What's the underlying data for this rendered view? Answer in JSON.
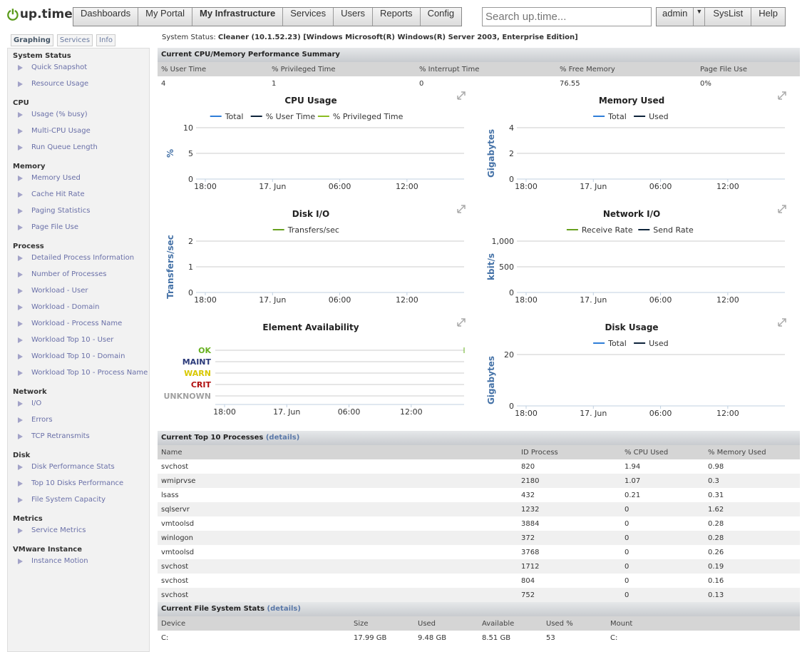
{
  "header": {
    "logo": "up.time",
    "nav": [
      "Dashboards",
      "My Portal",
      "My Infrastructure",
      "Services",
      "Users",
      "Reports",
      "Config"
    ],
    "active_nav": "My Infrastructure",
    "search_placeholder": "Search up.time...",
    "user": "admin",
    "syslist": "SysList",
    "help": "Help"
  },
  "sidebar": {
    "tabs": [
      "Graphing",
      "Services",
      "Info"
    ],
    "groups": [
      {
        "title": "System Status",
        "items": [
          "Quick Snapshot",
          "Resource Usage"
        ]
      },
      {
        "title": "CPU",
        "items": [
          "Usage (% busy)",
          "Multi-CPU Usage",
          "Run Queue Length"
        ]
      },
      {
        "title": "Memory",
        "items": [
          "Memory Used",
          "Cache Hit Rate",
          "Paging Statistics",
          "Page File Use"
        ]
      },
      {
        "title": "Process",
        "items": [
          "Detailed Process Information",
          "Number of Processes",
          "Workload - User",
          "Workload - Domain",
          "Workload - Process Name",
          "Workload Top 10 - User",
          "Workload Top 10 - Domain",
          "Workload Top 10 - Process Name"
        ]
      },
      {
        "title": "Network",
        "items": [
          "I/O",
          "Errors",
          "TCP Retransmits"
        ]
      },
      {
        "title": "Disk",
        "items": [
          "Disk Performance Stats",
          "Top 10 Disks Performance",
          "File System Capacity"
        ]
      },
      {
        "title": "Metrics",
        "items": [
          "Service Metrics"
        ]
      },
      {
        "title": "VMware Instance",
        "items": [
          "Instance Motion"
        ]
      }
    ]
  },
  "status": {
    "label": "System Status:",
    "value": "Cleaner (10.1.52.23) [Windows Microsoft(R) Windows(R) Server 2003, Enterprise Edition]"
  },
  "summary": {
    "title": "Current CPU/Memory Performance Summary",
    "headers": [
      "% User Time",
      "% Privileged Time",
      "% Interrupt Time",
      "% Free Memory",
      "Page File Use"
    ],
    "values": [
      "4",
      "1",
      "0",
      "76.55",
      "0%"
    ]
  },
  "chart_data": [
    {
      "type": "line",
      "title": "CPU Usage",
      "ylabel": "%",
      "ylim": [
        0,
        10
      ],
      "yticks": [
        "0",
        "5",
        "10"
      ],
      "xticks": [
        "18:00",
        "17. Jun",
        "06:00",
        "12:00"
      ],
      "series": [
        {
          "name": "Total",
          "color": "#2f7ed8",
          "values": []
        },
        {
          "name": "% User Time",
          "color": "#0d233a",
          "values": []
        },
        {
          "name": "% Privileged Time",
          "color": "#8bbc21",
          "values": []
        }
      ]
    },
    {
      "type": "line",
      "title": "Memory Used",
      "ylabel": "Gigabytes",
      "ylim": [
        0,
        4
      ],
      "yticks": [
        "0",
        "2",
        "4"
      ],
      "xticks": [
        "18:00",
        "17. Jun",
        "06:00",
        "12:00"
      ],
      "series": [
        {
          "name": "Total",
          "color": "#2f7ed8",
          "values": []
        },
        {
          "name": "Used",
          "color": "#0d233a",
          "values": []
        }
      ]
    },
    {
      "type": "line",
      "title": "Disk I/O",
      "ylabel": "Transfers/sec",
      "ylim": [
        0,
        2
      ],
      "yticks": [
        "0",
        "1",
        "2"
      ],
      "xticks": [
        "18:00",
        "17. Jun",
        "06:00",
        "12:00"
      ],
      "series": [
        {
          "name": "Transfers/sec",
          "color": "#66a01e",
          "values": []
        }
      ]
    },
    {
      "type": "line",
      "title": "Network I/O",
      "ylabel": "kbit/s",
      "ylim": [
        0,
        1000
      ],
      "yticks": [
        "0",
        "500",
        "1,000"
      ],
      "xticks": [
        "18:00",
        "17. Jun",
        "06:00",
        "12:00"
      ],
      "series": [
        {
          "name": "Receive Rate",
          "color": "#66a01e",
          "values": []
        },
        {
          "name": "Send Rate",
          "color": "#0d233a",
          "values": []
        }
      ]
    },
    {
      "type": "line",
      "title": "Element Availability",
      "ylabel": "",
      "categories": [
        {
          "name": "OK",
          "color": "#66b01e"
        },
        {
          "name": "MAINT",
          "color": "#2b3a7a"
        },
        {
          "name": "WARN",
          "color": "#d8c800"
        },
        {
          "name": "CRIT",
          "color": "#b01010"
        },
        {
          "name": "UNKNOWN",
          "color": "#a0a0a0"
        }
      ],
      "xticks": [
        "18:00",
        "17. Jun",
        "06:00",
        "12:00"
      ],
      "series": []
    },
    {
      "type": "line",
      "title": "Disk Usage",
      "ylabel": "Gigabytes",
      "ylim": [
        0,
        20
      ],
      "yticks": [
        "0",
        "20"
      ],
      "xticks": [
        "18:00",
        "17. Jun",
        "06:00",
        "12:00"
      ],
      "series": [
        {
          "name": "Total",
          "color": "#2f7ed8",
          "values": []
        },
        {
          "name": "Used",
          "color": "#0d233a",
          "values": []
        }
      ]
    }
  ],
  "processes": {
    "title": "Current Top 10 Processes",
    "details": "(details)",
    "headers": [
      "Name",
      "ID Process",
      "% CPU Used",
      "% Memory Used"
    ],
    "rows": [
      [
        "svchost",
        "820",
        "1.94",
        "0.98"
      ],
      [
        "wmiprvse",
        "2180",
        "1.07",
        "0.3"
      ],
      [
        "lsass",
        "432",
        "0.21",
        "0.31"
      ],
      [
        "sqlservr",
        "1232",
        "0",
        "1.62"
      ],
      [
        "vmtoolsd",
        "3884",
        "0",
        "0.28"
      ],
      [
        "winlogon",
        "372",
        "0",
        "0.28"
      ],
      [
        "vmtoolsd",
        "3768",
        "0",
        "0.26"
      ],
      [
        "svchost",
        "1712",
        "0",
        "0.19"
      ],
      [
        "svchost",
        "804",
        "0",
        "0.16"
      ],
      [
        "svchost",
        "752",
        "0",
        "0.13"
      ]
    ]
  },
  "filesystem": {
    "title": "Current File System Stats",
    "details": "(details)",
    "headers": [
      "Device",
      "Size",
      "Used",
      "Available",
      "Used %",
      "Mount"
    ],
    "rows": [
      [
        "C:",
        "17.99 GB",
        "9.48 GB",
        "8.51 GB",
        "53",
        "C:"
      ]
    ]
  }
}
